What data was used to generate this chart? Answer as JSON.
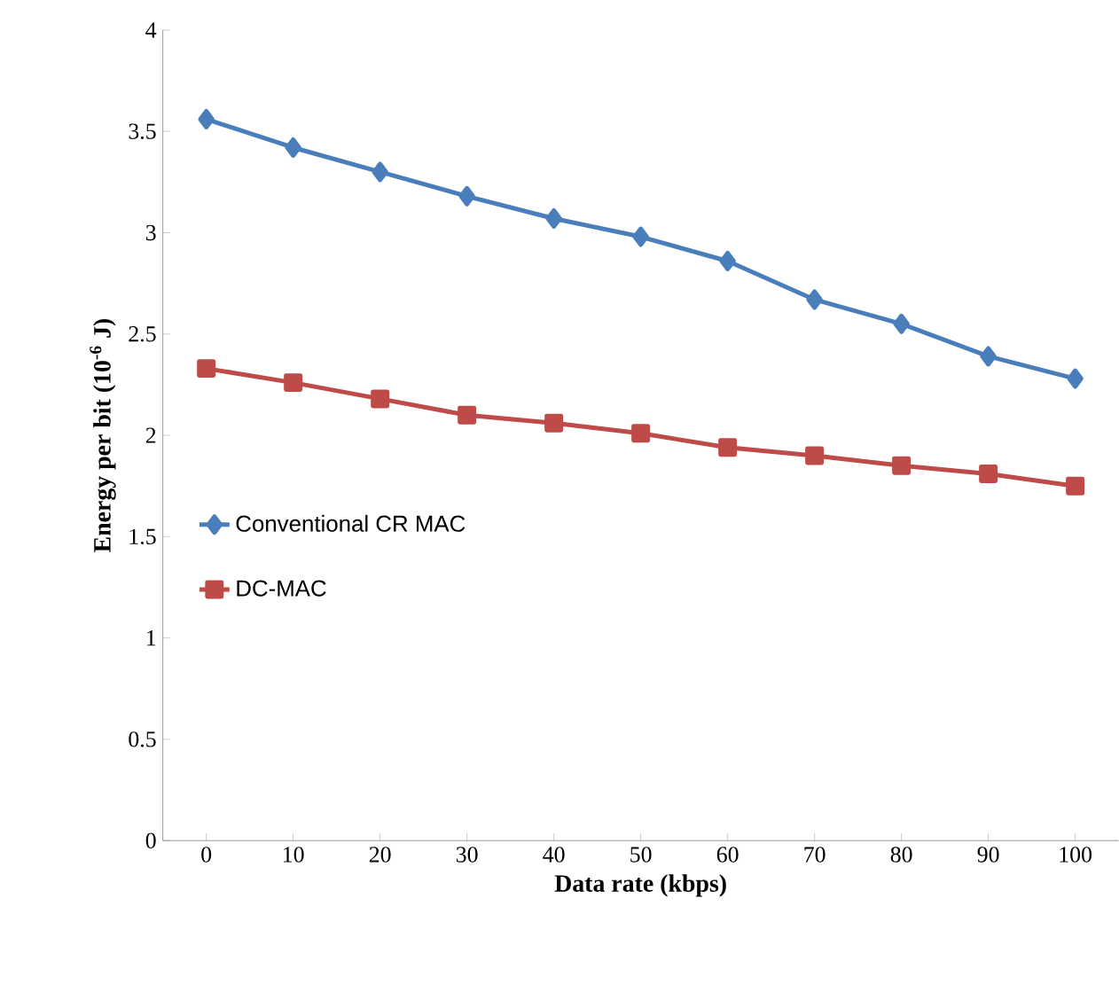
{
  "chart_data": {
    "type": "line",
    "xlabel": "Data rate (kbps)",
    "ylabel": "Energy per bit (10$^{-6}$ J)",
    "categories": [
      "0",
      "10",
      "20",
      "30",
      "40",
      "50",
      "60",
      "70",
      "80",
      "90",
      "100"
    ],
    "series": [
      {
        "name": "Conventional CR MAC",
        "color": "#4a7ebb",
        "marker": "diamond",
        "values": [
          3.56,
          3.42,
          3.3,
          3.18,
          3.07,
          2.98,
          2.86,
          2.67,
          2.55,
          2.39,
          2.28
        ]
      },
      {
        "name": "DC-MAC",
        "color": "#be4b48",
        "marker": "square",
        "values": [
          2.33,
          2.26,
          2.18,
          2.1,
          2.06,
          2.01,
          1.94,
          1.9,
          1.85,
          1.81,
          1.75
        ]
      }
    ],
    "ylim": [
      0,
      4
    ],
    "yticks": [
      0,
      0.5,
      1,
      1.5,
      2,
      2.5,
      3,
      3.5,
      4
    ],
    "legend": "left",
    "grid": false,
    "line_style": "solid"
  }
}
